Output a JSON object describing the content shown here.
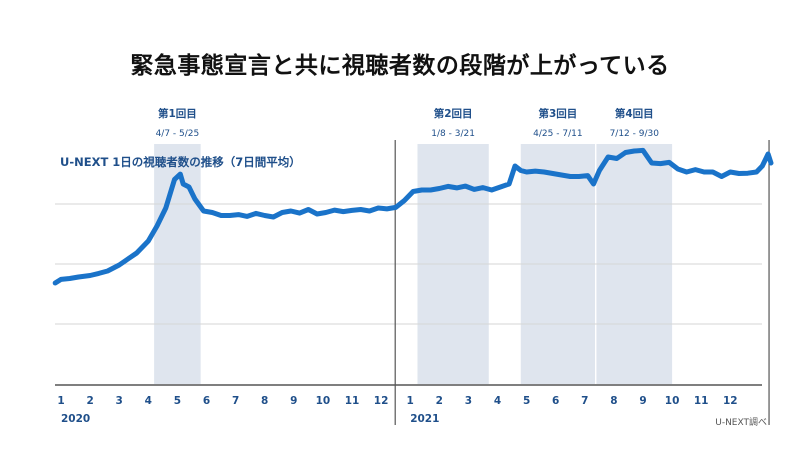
{
  "headline": "緊急事態宣言と共に視聴者数の段階が上がっている",
  "source": "U-NEXT調べ",
  "chart_data": {
    "type": "line",
    "title": "U-NEXT 1日の視聴者数の推移（7日間平均）",
    "xlabel": "",
    "ylabel": "",
    "y_tick_labels_shown": false,
    "grid": "horizontal",
    "color": "#1a73c9",
    "band_color": "#dfe5ee",
    "year_labels": [
      {
        "label": "2020",
        "month": 1
      },
      {
        "label": "2021",
        "month": 13
      }
    ],
    "month_ticks": [
      {
        "label": "1",
        "month": 1
      },
      {
        "label": "2",
        "month": 2
      },
      {
        "label": "3",
        "month": 3
      },
      {
        "label": "4",
        "month": 4
      },
      {
        "label": "5",
        "month": 5
      },
      {
        "label": "6",
        "month": 6
      },
      {
        "label": "7",
        "month": 7
      },
      {
        "label": "8",
        "month": 8
      },
      {
        "label": "9",
        "month": 9
      },
      {
        "label": "10",
        "month": 10
      },
      {
        "label": "11",
        "month": 11
      },
      {
        "label": "12",
        "month": 12
      },
      {
        "label": "1",
        "month": 13
      },
      {
        "label": "2",
        "month": 14
      },
      {
        "label": "3",
        "month": 15
      },
      {
        "label": "4",
        "month": 16
      },
      {
        "label": "5",
        "month": 17
      },
      {
        "label": "6",
        "month": 18
      },
      {
        "label": "7",
        "month": 19
      },
      {
        "label": "8",
        "month": 20
      },
      {
        "label": "9",
        "month": 21
      },
      {
        "label": "10",
        "month": 22
      },
      {
        "label": "11",
        "month": 23
      },
      {
        "label": "12",
        "month": 24
      }
    ],
    "periods": [
      {
        "name": "第1回目",
        "range": "4/7 - 5/25",
        "start": 4.2,
        "end": 5.8
      },
      {
        "name": "第2回目",
        "range": "1/8 - 3/21",
        "start": 13.25,
        "end": 15.7
      },
      {
        "name": "第3回目",
        "range": "4/25 - 7/11",
        "start": 16.8,
        "end": 19.35
      },
      {
        "name": "第4回目",
        "range": "7/12 - 9/30",
        "start": 19.4,
        "end": 22.0
      }
    ],
    "year_divider_month": 13,
    "end_marker_month": 25.4,
    "ylim": [
      0,
      100
    ],
    "series": [
      {
        "x": [
          0.8,
          1.0,
          1.3,
          1.6,
          2.0,
          2.3,
          2.6,
          3.0,
          3.3,
          3.6,
          4.0,
          4.3,
          4.6,
          4.9,
          5.1,
          5.2,
          5.4,
          5.6,
          5.9,
          6.2,
          6.5,
          6.8,
          7.1,
          7.4,
          7.7,
          8.0,
          8.3,
          8.6,
          8.9,
          9.2,
          9.5,
          9.8,
          10.1,
          10.4,
          10.7,
          11.0,
          11.3,
          11.6,
          11.9,
          12.2,
          12.5,
          12.8,
          13.1,
          13.4,
          13.7,
          14.0,
          14.3,
          14.6,
          14.9,
          15.2,
          15.5,
          15.8,
          16.1,
          16.4,
          16.6,
          16.8,
          17.0,
          17.3,
          17.6,
          17.9,
          18.2,
          18.5,
          18.8,
          19.1,
          19.3,
          19.5,
          19.8,
          20.1,
          20.4,
          20.7,
          21.0,
          21.3,
          21.6,
          21.9,
          22.2,
          22.5,
          22.8,
          23.1,
          23.4,
          23.7,
          24.0,
          24.3,
          24.6,
          24.9,
          25.1,
          25.3,
          25.4
        ],
        "y": [
          34.0,
          35.2,
          35.5,
          36.0,
          36.5,
          37.2,
          38.0,
          40.0,
          42.0,
          44.0,
          48.0,
          53.0,
          59.0,
          68.5,
          70.3,
          67.0,
          66.0,
          62.0,
          58.0,
          57.5,
          56.5,
          56.5,
          56.8,
          56.2,
          57.2,
          56.5,
          56.0,
          57.5,
          58.0,
          57.3,
          58.5,
          57.0,
          57.5,
          58.3,
          57.8,
          58.2,
          58.5,
          58.0,
          59.0,
          58.7,
          59.2,
          61.5,
          64.5,
          65.0,
          65.0,
          65.5,
          66.2,
          65.7,
          66.3,
          65.2,
          65.8,
          65.0,
          66.0,
          67.0,
          73.0,
          71.5,
          71.0,
          71.3,
          71.0,
          70.5,
          70.0,
          69.5,
          69.5,
          69.8,
          67.0,
          71.5,
          76.0,
          75.5,
          77.5,
          78.0,
          78.2,
          74.0,
          73.8,
          74.2,
          72.0,
          71.0,
          71.8,
          71.0,
          71.0,
          69.5,
          71.0,
          70.5,
          70.6,
          71.0,
          73.0,
          77.0,
          74.0
        ]
      }
    ]
  }
}
